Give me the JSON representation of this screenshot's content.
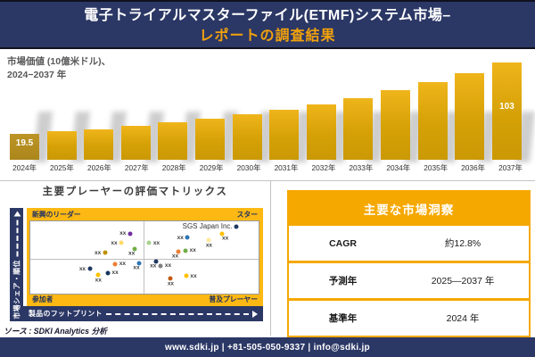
{
  "header": {
    "title_line1": "電子トライアルマスターファイル(ETMF)システム市場–",
    "title_line2": "レポートの調査結果"
  },
  "chart_data": [
    {
      "type": "bar",
      "title": "市場価値 (10億米ドル)、2024−2037 年",
      "label_line1": "市場価値 (10億米ドル)、",
      "label_line2": "2024−2037 年",
      "categories": [
        "2024年",
        "2025年",
        "2026年",
        "2027年",
        "2028年",
        "2029年",
        "2030年",
        "2031年",
        "2032年",
        "2033年",
        "2034年",
        "2035年",
        "2036年",
        "2037年"
      ],
      "values": [
        19.5,
        22.2,
        25.2,
        28.6,
        32.6,
        37.0,
        42.1,
        47.8,
        54.4,
        61.8,
        70.2,
        79.8,
        90.7,
        103
      ],
      "data_labels": {
        "first": "19.5",
        "last": "103"
      },
      "ylabel": "市場価値 (10億米ドル)",
      "ylim": [
        0,
        110
      ],
      "bar_color": "#d5a106",
      "first_bar_color": "#b28d1e"
    },
    {
      "type": "scatter",
      "title": "主要プレーヤーの評価マトリックス",
      "xlabel": "製品のフットプリント",
      "ylabel": "市場シェア・順位",
      "quadrant_labels": {
        "top_left": "新興のリーダー",
        "top_right": "スター",
        "bottom_left": "参加者",
        "bottom_right": "普及プレーヤー"
      },
      "points": [
        {
          "x_pct": 43.7,
          "y_pct": 16.7,
          "color": "#7030a0",
          "label": "xx",
          "label_pos": "left"
        },
        {
          "x_pct": 39.9,
          "y_pct": 29.8,
          "color": "#ffd966",
          "label": "xx",
          "label_pos": "left"
        },
        {
          "x_pct": 45.6,
          "y_pct": 38.5,
          "color": "#70ad47",
          "label": "xx",
          "label_pos": "below-left"
        },
        {
          "x_pct": 32.7,
          "y_pct": 43.7,
          "color": "#bf8f00",
          "label": "xx",
          "label_pos": "left"
        },
        {
          "x_pct": 37.2,
          "y_pct": 59.2,
          "color": "#ed7d31",
          "label": "xx",
          "label_pos": "right"
        },
        {
          "x_pct": 47.7,
          "y_pct": 57.5,
          "color": "#2e75b6",
          "label": "xx",
          "label_pos": "below-left"
        },
        {
          "x_pct": 26.0,
          "y_pct": 65.5,
          "color": "#1f3864",
          "label": "xx",
          "label_pos": "left"
        },
        {
          "x_pct": 29.8,
          "y_pct": 73.5,
          "color": "#ffc000",
          "label": "xx",
          "label_pos": "below"
        },
        {
          "x_pct": 34.0,
          "y_pct": 71.1,
          "color": "#17375e",
          "label": "xx",
          "label_pos": "right"
        },
        {
          "x_pct": 52.1,
          "y_pct": 29.8,
          "color": "#a9d18e",
          "label": "xx",
          "label_pos": "right"
        },
        {
          "x_pct": 68.9,
          "y_pct": 22.6,
          "color": "#2e75b6",
          "label": "xx",
          "label_pos": "left"
        },
        {
          "x_pct": 90.3,
          "y_pct": 6.8,
          "color": "#1f3864",
          "label": "SGS Japan Inc.",
          "label_pos": "left"
        },
        {
          "x_pct": 78.3,
          "y_pct": 25.8,
          "color": "#ffe699",
          "label": "xx",
          "label_pos": "below"
        },
        {
          "x_pct": 83.8,
          "y_pct": 16.7,
          "color": "#ffc000",
          "label": "xx",
          "label_pos": "below-right"
        },
        {
          "x_pct": 64.7,
          "y_pct": 42.5,
          "color": "#ed7d31",
          "label": "xx",
          "label_pos": "below-left"
        },
        {
          "x_pct": 68.0,
          "y_pct": 40.5,
          "color": "#70ad47",
          "label": "xx",
          "label_pos": "right"
        },
        {
          "x_pct": 55.0,
          "y_pct": 55.6,
          "color": "#1f3864",
          "label": "xx",
          "label_pos": "below-left"
        },
        {
          "x_pct": 57.2,
          "y_pct": 61.5,
          "color": "#7f7f7f",
          "label": "xx",
          "label_pos": "right"
        },
        {
          "x_pct": 61.5,
          "y_pct": 78.9,
          "color": "#c55a11",
          "label": "xx",
          "label_pos": "below"
        },
        {
          "x_pct": 68.3,
          "y_pct": 75.4,
          "color": "#ffc000",
          "label": "xx",
          "label_pos": "right"
        }
      ]
    }
  ],
  "insights": {
    "title": "主要な市場洞察",
    "rows": [
      {
        "label": "CAGR",
        "value": "約12.8%"
      },
      {
        "label": "予測年",
        "value": "2025—2037 年"
      },
      {
        "label": "基準年",
        "value": "2024 年"
      }
    ]
  },
  "source_note": "ソース : SDKI Analytics 分析",
  "footer": {
    "contact": "www.sdki.jp | +81-505-050-9337 | info@sdki.jp"
  },
  "colors": {
    "navy": "#2b3765",
    "gold": "#fdb813",
    "table_gold": "#f5a800",
    "title_accent": "#f2a20c",
    "bar_gold": "#d5a106"
  }
}
